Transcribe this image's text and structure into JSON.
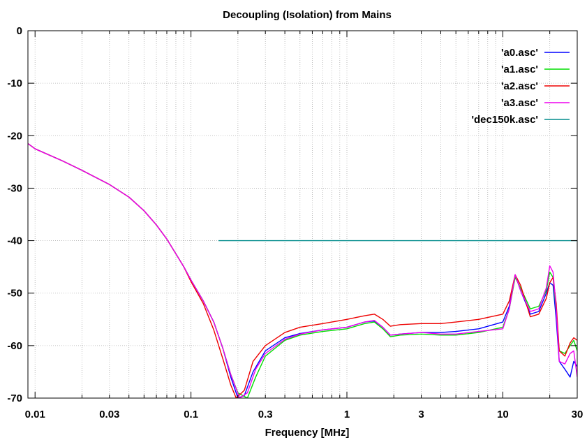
{
  "chart_data": {
    "type": "line",
    "title": "Decoupling (Isolation) from Mains",
    "xlabel": "Frequency [MHz]",
    "ylabel": "",
    "x_scale": "log",
    "xlim": [
      0.009,
      30
    ],
    "ylim": [
      -70,
      0
    ],
    "x_ticks": [
      0.01,
      0.03,
      0.1,
      0.3,
      1,
      3,
      10,
      30
    ],
    "x_tick_labels": [
      "0.01",
      "0.03",
      "0.1",
      "0.3",
      "1",
      "3",
      "10",
      "30"
    ],
    "y_ticks": [
      0,
      -10,
      -20,
      -30,
      -40,
      -50,
      -60,
      -70
    ],
    "y_tick_labels": [
      "0",
      "-10",
      "-20",
      "-30",
      "-40",
      "-50",
      "-60",
      "-70"
    ],
    "grid": true,
    "legend_position": "top-right",
    "series": [
      {
        "name": "'a0.asc'",
        "color": "#0000ff",
        "points": [
          [
            0.009,
            -21.5
          ],
          [
            0.01,
            -22.5
          ],
          [
            0.015,
            -24.8
          ],
          [
            0.02,
            -26.6
          ],
          [
            0.03,
            -29.3
          ],
          [
            0.04,
            -31.7
          ],
          [
            0.05,
            -34.3
          ],
          [
            0.06,
            -37.0
          ],
          [
            0.07,
            -39.7
          ],
          [
            0.08,
            -42.5
          ],
          [
            0.09,
            -45.0
          ],
          [
            0.1,
            -47.5
          ],
          [
            0.12,
            -51.5
          ],
          [
            0.14,
            -55.5
          ],
          [
            0.16,
            -60.5
          ],
          [
            0.18,
            -66.0
          ],
          [
            0.2,
            -70.0
          ],
          [
            0.22,
            -69.5
          ],
          [
            0.25,
            -65.0
          ],
          [
            0.3,
            -61.0
          ],
          [
            0.4,
            -58.5
          ],
          [
            0.5,
            -57.7
          ],
          [
            0.7,
            -57.0
          ],
          [
            1.0,
            -56.5
          ],
          [
            1.3,
            -55.5
          ],
          [
            1.5,
            -55.3
          ],
          [
            1.7,
            -56.5
          ],
          [
            1.9,
            -58.0
          ],
          [
            2.2,
            -57.8
          ],
          [
            3.0,
            -57.5
          ],
          [
            4.0,
            -57.5
          ],
          [
            5.0,
            -57.3
          ],
          [
            7.0,
            -56.8
          ],
          [
            10.0,
            -55.5
          ],
          [
            11.0,
            -52.5
          ],
          [
            12.0,
            -46.5
          ],
          [
            13.0,
            -49.5
          ],
          [
            15.0,
            -54.0
          ],
          [
            17.0,
            -53.5
          ],
          [
            19.0,
            -50.0
          ],
          [
            20.0,
            -48.0
          ],
          [
            21.0,
            -48.5
          ],
          [
            22.0,
            -55.0
          ],
          [
            23.0,
            -63.0
          ],
          [
            25.0,
            -64.5
          ],
          [
            27.0,
            -66.0
          ],
          [
            28.5,
            -63.0
          ],
          [
            30.0,
            -64.0
          ]
        ]
      },
      {
        "name": "'a1.asc'",
        "color": "#00dd00",
        "points": [
          [
            0.009,
            -21.5
          ],
          [
            0.01,
            -22.5
          ],
          [
            0.015,
            -24.8
          ],
          [
            0.02,
            -26.6
          ],
          [
            0.03,
            -29.3
          ],
          [
            0.04,
            -31.7
          ],
          [
            0.05,
            -34.3
          ],
          [
            0.06,
            -37.0
          ],
          [
            0.07,
            -39.7
          ],
          [
            0.08,
            -42.5
          ],
          [
            0.09,
            -45.0
          ],
          [
            0.1,
            -47.5
          ],
          [
            0.12,
            -51.5
          ],
          [
            0.14,
            -55.5
          ],
          [
            0.16,
            -60.5
          ],
          [
            0.18,
            -65.5
          ],
          [
            0.2,
            -69.0
          ],
          [
            0.23,
            -70.0
          ],
          [
            0.26,
            -66.0
          ],
          [
            0.3,
            -62.0
          ],
          [
            0.4,
            -59.0
          ],
          [
            0.5,
            -58.0
          ],
          [
            0.7,
            -57.3
          ],
          [
            1.0,
            -56.8
          ],
          [
            1.3,
            -55.8
          ],
          [
            1.5,
            -55.5
          ],
          [
            1.7,
            -56.8
          ],
          [
            1.9,
            -58.3
          ],
          [
            2.2,
            -58.0
          ],
          [
            3.0,
            -57.8
          ],
          [
            4.0,
            -58.0
          ],
          [
            5.0,
            -58.0
          ],
          [
            7.0,
            -57.5
          ],
          [
            10.0,
            -56.5
          ],
          [
            11.0,
            -53.0
          ],
          [
            12.0,
            -47.0
          ],
          [
            13.0,
            -49.0
          ],
          [
            15.0,
            -53.0
          ],
          [
            17.0,
            -52.5
          ],
          [
            19.0,
            -49.5
          ],
          [
            20.0,
            -46.0
          ],
          [
            21.0,
            -47.0
          ],
          [
            22.0,
            -53.5
          ],
          [
            23.0,
            -61.0
          ],
          [
            25.0,
            -61.5
          ],
          [
            27.0,
            -60.0
          ],
          [
            28.5,
            -59.0
          ],
          [
            30.0,
            -61.0
          ]
        ]
      },
      {
        "name": "'a2.asc'",
        "color": "#ee0000",
        "points": [
          [
            0.009,
            -21.5
          ],
          [
            0.01,
            -22.5
          ],
          [
            0.015,
            -24.8
          ],
          [
            0.02,
            -26.6
          ],
          [
            0.03,
            -29.3
          ],
          [
            0.04,
            -31.7
          ],
          [
            0.05,
            -34.3
          ],
          [
            0.06,
            -37.0
          ],
          [
            0.07,
            -39.7
          ],
          [
            0.08,
            -42.5
          ],
          [
            0.09,
            -45.0
          ],
          [
            0.1,
            -47.8
          ],
          [
            0.12,
            -52.0
          ],
          [
            0.14,
            -57.0
          ],
          [
            0.16,
            -62.5
          ],
          [
            0.18,
            -67.5
          ],
          [
            0.195,
            -70.0
          ],
          [
            0.22,
            -68.5
          ],
          [
            0.25,
            -63.0
          ],
          [
            0.3,
            -60.0
          ],
          [
            0.4,
            -57.5
          ],
          [
            0.5,
            -56.5
          ],
          [
            0.7,
            -55.8
          ],
          [
            1.0,
            -55.0
          ],
          [
            1.3,
            -54.3
          ],
          [
            1.5,
            -54.0
          ],
          [
            1.7,
            -55.0
          ],
          [
            1.9,
            -56.3
          ],
          [
            2.2,
            -56.0
          ],
          [
            3.0,
            -55.8
          ],
          [
            4.0,
            -55.8
          ],
          [
            5.0,
            -55.5
          ],
          [
            7.0,
            -55.0
          ],
          [
            10.0,
            -54.0
          ],
          [
            11.0,
            -51.5
          ],
          [
            12.0,
            -46.5
          ],
          [
            13.0,
            -48.5
          ],
          [
            15.0,
            -54.5
          ],
          [
            17.0,
            -54.0
          ],
          [
            19.0,
            -51.0
          ],
          [
            20.0,
            -48.0
          ],
          [
            21.0,
            -47.0
          ],
          [
            22.0,
            -52.0
          ],
          [
            23.0,
            -61.0
          ],
          [
            25.0,
            -62.0
          ],
          [
            27.0,
            -59.5
          ],
          [
            28.5,
            -58.5
          ],
          [
            30.0,
            -59.0
          ]
        ]
      },
      {
        "name": "'a3.asc'",
        "color": "#ee00ee",
        "points": [
          [
            0.009,
            -21.5
          ],
          [
            0.01,
            -22.5
          ],
          [
            0.015,
            -24.8
          ],
          [
            0.02,
            -26.6
          ],
          [
            0.03,
            -29.3
          ],
          [
            0.04,
            -31.7
          ],
          [
            0.05,
            -34.3
          ],
          [
            0.06,
            -37.0
          ],
          [
            0.07,
            -39.7
          ],
          [
            0.08,
            -42.5
          ],
          [
            0.09,
            -45.0
          ],
          [
            0.1,
            -47.5
          ],
          [
            0.12,
            -51.5
          ],
          [
            0.14,
            -55.5
          ],
          [
            0.16,
            -60.5
          ],
          [
            0.18,
            -65.5
          ],
          [
            0.205,
            -70.0
          ],
          [
            0.23,
            -69.0
          ],
          [
            0.26,
            -64.5
          ],
          [
            0.3,
            -61.5
          ],
          [
            0.4,
            -58.8
          ],
          [
            0.5,
            -57.8
          ],
          [
            0.7,
            -57.0
          ],
          [
            1.0,
            -56.5
          ],
          [
            1.3,
            -55.5
          ],
          [
            1.5,
            -55.2
          ],
          [
            1.7,
            -56.5
          ],
          [
            1.9,
            -58.0
          ],
          [
            2.2,
            -57.8
          ],
          [
            3.0,
            -57.5
          ],
          [
            4.0,
            -57.8
          ],
          [
            5.0,
            -57.8
          ],
          [
            7.0,
            -57.3
          ],
          [
            10.0,
            -56.8
          ],
          [
            11.0,
            -53.0
          ],
          [
            12.0,
            -46.5
          ],
          [
            13.0,
            -49.5
          ],
          [
            15.0,
            -53.5
          ],
          [
            17.0,
            -53.0
          ],
          [
            19.0,
            -49.0
          ],
          [
            20.0,
            -44.8
          ],
          [
            21.0,
            -46.0
          ],
          [
            22.0,
            -53.0
          ],
          [
            23.0,
            -63.0
          ],
          [
            25.0,
            -63.5
          ],
          [
            27.0,
            -61.5
          ],
          [
            28.5,
            -61.0
          ],
          [
            30.0,
            -66.0
          ]
        ]
      },
      {
        "name": "'dec150k.asc'",
        "color": "#008b8b",
        "points": [
          [
            0.15,
            -40
          ],
          [
            30,
            -40
          ]
        ]
      }
    ]
  }
}
